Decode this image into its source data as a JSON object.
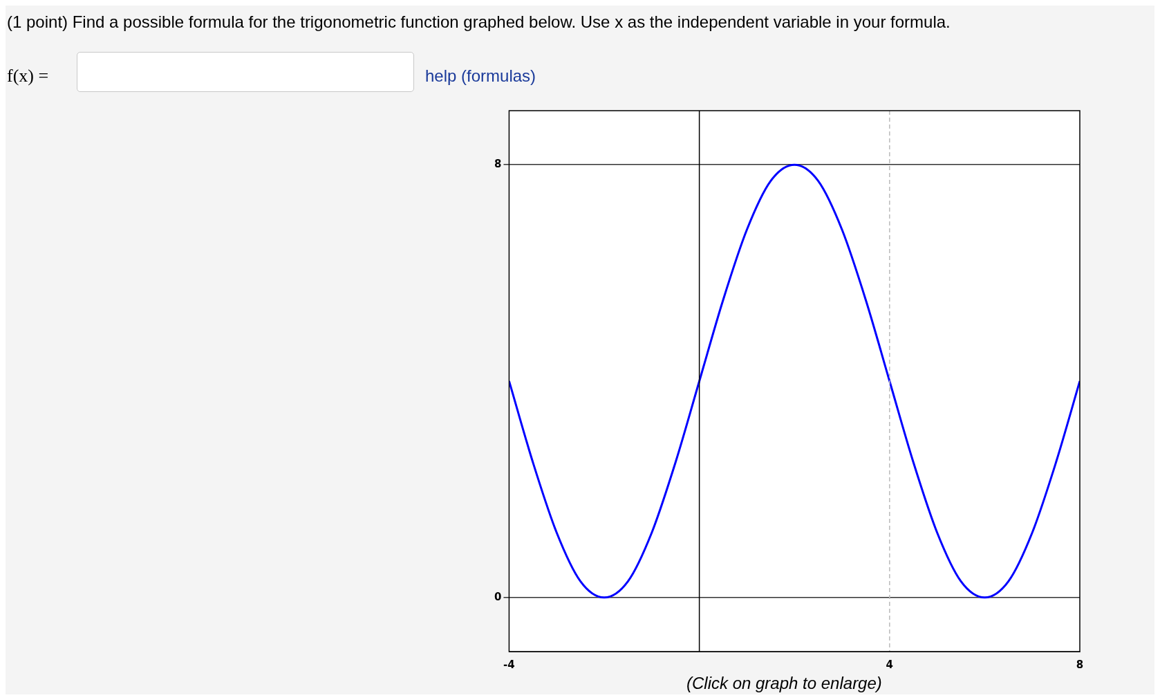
{
  "chart_data": {
    "type": "line",
    "title": "(1 point) Find a possible formula for the trigonometric function graphed below. Use x as the independent variable in your formula.",
    "annotations": [
      "f(x) =",
      "help (formulas)",
      "(Click on graph to enlarge)"
    ],
    "x": [
      -4,
      -3.5,
      -3,
      -2.5,
      -2,
      -1.5,
      -1,
      -0.5,
      0,
      0.5,
      1,
      1.5,
      2,
      2.5,
      3,
      3.5,
      4,
      4.5,
      5,
      5.5,
      6,
      6.5,
      7,
      7.5,
      8
    ],
    "series": [
      {
        "color": "#0000ff",
        "values": [
          4,
          2.5,
          1.2,
          0.3,
          0,
          0.3,
          1.2,
          2.5,
          4,
          5.5,
          6.8,
          7.7,
          8,
          7.7,
          6.8,
          5.5,
          4,
          2.5,
          1.2,
          0.3,
          0,
          0.3,
          1.2,
          2.5,
          4
        ]
      }
    ],
    "xlim": [
      -4,
      8
    ],
    "xticks": [
      -4,
      4,
      8
    ],
    "ylim": [
      -1,
      9
    ],
    "yticks": [
      0,
      8
    ],
    "grid": "y",
    "ref_lines": [
      {
        "axis": "x",
        "value": 0,
        "color": "#000000"
      },
      {
        "axis": "x",
        "value": 4,
        "color": "#bbbbbb",
        "line_style": "dashed"
      }
    ],
    "marker": "none",
    "line_style": "solid",
    "legend": false
  }
}
